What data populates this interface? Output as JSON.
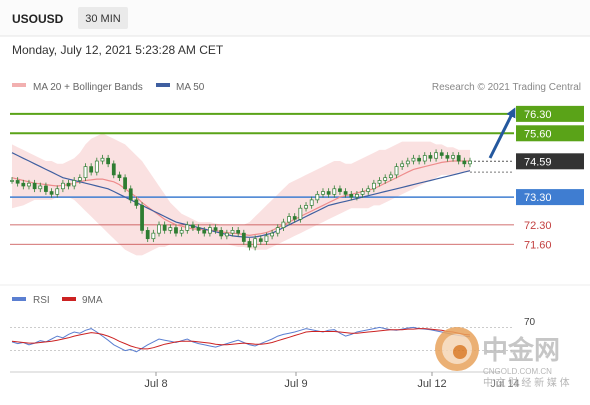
{
  "header": {
    "symbol": "USOUSD",
    "timeframe": "30 MIN",
    "datetime": "Monday, July 12, 2021 5:23:28 AM CET"
  },
  "legend": {
    "ma20": "MA 20 + Bollinger Bands",
    "ma50": "MA 50",
    "credit": "Research © 2021 Trading Central",
    "rsi": "RSI",
    "ma9": "9MA"
  },
  "colors": {
    "candle": "#2e7d32",
    "ma20": "#ee8c8c",
    "band": "#f6c9c9",
    "ma50": "#3f5fa0",
    "resistance": "#5aa318",
    "support": "#3f7dd1",
    "current": "#333333",
    "pivot": "#c34040",
    "rsi": "#5b7fd1",
    "ma9": "#cc2222",
    "arrow": "#24589e"
  },
  "watermark": {
    "logo_text": "中金网",
    "url": "CNGOLD.COM.CN",
    "slogan": "中 文 财 经 新 媒 体"
  },
  "chart_data": {
    "type": "line",
    "title": "USOUSD",
    "timeframe": "30 MIN",
    "y_range": [
      70.6,
      76.8
    ],
    "x_ticks": [
      "Jul 8",
      "Jul 9",
      "Jul 12"
    ],
    "extra_tick": "Jul 14",
    "levels": [
      {
        "value": 76.3,
        "label": "76.30",
        "kind": "resistance"
      },
      {
        "value": 75.6,
        "label": "75.60",
        "kind": "resistance"
      },
      {
        "value": 74.59,
        "label": "74.59",
        "kind": "current"
      },
      {
        "value": 73.3,
        "label": "73.30",
        "kind": "support"
      },
      {
        "value": 72.3,
        "label": "72.30",
        "kind": "pivot"
      },
      {
        "value": 71.6,
        "label": "71.60",
        "kind": "pivot"
      }
    ],
    "price_close": [
      73.9,
      73.8,
      73.7,
      73.8,
      73.6,
      73.7,
      73.5,
      73.4,
      73.6,
      73.8,
      73.7,
      73.9,
      74.0,
      74.4,
      74.2,
      74.6,
      74.7,
      74.5,
      74.1,
      74.0,
      73.6,
      73.2,
      73.0,
      72.1,
      71.8,
      72.0,
      72.3,
      72.1,
      72.2,
      72.0,
      72.1,
      72.3,
      72.2,
      72.1,
      72.0,
      72.2,
      72.1,
      71.9,
      72.0,
      72.1,
      72.0,
      71.7,
      71.5,
      71.8,
      71.7,
      71.9,
      72.0,
      72.2,
      72.4,
      72.6,
      72.5,
      72.9,
      73.0,
      73.2,
      73.4,
      73.5,
      73.4,
      73.6,
      73.5,
      73.4,
      73.3,
      73.4,
      73.5,
      73.6,
      73.8,
      73.9,
      74.0,
      74.1,
      74.4,
      74.5,
      74.6,
      74.7,
      74.6,
      74.8,
      74.7,
      74.9,
      74.8,
      74.7,
      74.8,
      74.6,
      74.5,
      74.6
    ],
    "ma20": [
      74.0,
      73.95,
      73.9,
      73.85,
      73.8,
      73.78,
      73.75,
      73.72,
      73.7,
      73.72,
      73.75,
      73.8,
      73.85,
      73.9,
      73.92,
      73.95,
      73.95,
      73.9,
      73.85,
      73.75,
      73.6,
      73.45,
      73.3,
      73.1,
      72.95,
      72.8,
      72.65,
      72.5,
      72.4,
      72.3,
      72.25,
      72.2,
      72.15,
      72.15,
      72.12,
      72.1,
      72.1,
      72.05,
      72.02,
      72.0,
      71.98,
      71.95,
      71.92,
      71.95,
      71.98,
      72.02,
      72.1,
      72.2,
      72.3,
      72.4,
      72.5,
      72.6,
      72.7,
      72.8,
      72.9,
      73.0,
      73.1,
      73.2,
      73.3,
      73.35,
      73.4,
      73.45,
      73.5,
      73.55,
      73.6,
      73.7,
      73.8,
      73.9,
      74.0,
      74.1,
      74.2,
      74.3,
      74.35,
      74.4,
      74.45,
      74.5,
      74.55,
      74.58,
      74.6,
      74.6,
      74.6,
      74.6
    ],
    "upper_band": [
      75.2,
      75.1,
      75.0,
      74.9,
      74.8,
      74.7,
      74.6,
      74.6,
      74.5,
      74.5,
      74.6,
      74.7,
      74.9,
      75.2,
      75.4,
      75.5,
      75.6,
      75.5,
      75.4,
      75.3,
      75.2,
      75.0,
      74.8,
      74.6,
      74.3,
      74.0,
      73.7,
      73.4,
      73.1,
      72.9,
      72.7,
      72.6,
      72.5,
      72.4,
      72.4,
      72.4,
      72.35,
      72.3,
      72.3,
      72.3,
      72.3,
      72.3,
      72.4,
      72.6,
      72.8,
      73.0,
      73.2,
      73.4,
      73.6,
      73.8,
      73.9,
      74.0,
      74.1,
      74.2,
      74.3,
      74.4,
      74.5,
      74.6,
      74.6,
      74.5,
      74.5,
      74.6,
      74.7,
      74.8,
      74.9,
      75.0,
      75.0,
      75.1,
      75.2,
      75.3,
      75.3,
      75.3,
      75.3,
      75.3,
      75.3,
      75.2,
      75.2,
      75.1,
      75.1,
      75.0,
      75.0,
      75.0
    ],
    "lower_band": [
      72.9,
      72.95,
      73.0,
      73.1,
      73.2,
      73.2,
      73.2,
      73.2,
      73.3,
      73.3,
      73.3,
      73.2,
      73.0,
      72.8,
      72.6,
      72.4,
      72.2,
      72.0,
      71.8,
      71.6,
      71.4,
      71.3,
      71.2,
      71.2,
      71.3,
      71.4,
      71.5,
      71.5,
      71.6,
      71.6,
      71.6,
      71.6,
      71.6,
      71.6,
      71.6,
      71.6,
      71.6,
      71.6,
      71.6,
      71.55,
      71.5,
      71.5,
      71.45,
      71.4,
      71.4,
      71.4,
      71.5,
      71.6,
      71.7,
      71.8,
      71.9,
      72.0,
      72.1,
      72.2,
      72.3,
      72.4,
      72.5,
      72.6,
      72.7,
      72.8,
      72.9,
      72.9,
      72.9,
      72.9,
      73.0,
      73.0,
      73.1,
      73.2,
      73.3,
      73.4,
      73.5,
      73.6,
      73.7,
      73.8,
      73.9,
      74.0,
      74.1,
      74.1,
      74.1,
      74.2,
      74.2,
      74.2
    ],
    "ma50": [
      74.9,
      74.8,
      74.7,
      74.6,
      74.5,
      74.4,
      74.3,
      74.2,
      74.1,
      74.0,
      73.95,
      73.9,
      73.85,
      73.8,
      73.75,
      73.7,
      73.65,
      73.6,
      73.5,
      73.4,
      73.3,
      73.2,
      73.1,
      73.0,
      72.9,
      72.8,
      72.7,
      72.6,
      72.5,
      72.4,
      72.35,
      72.3,
      72.25,
      72.2,
      72.15,
      72.1,
      72.05,
      72.0,
      71.95,
      71.9,
      71.88,
      71.86,
      71.85,
      71.86,
      71.9,
      71.95,
      72.0,
      72.1,
      72.2,
      72.3,
      72.4,
      72.5,
      72.6,
      72.7,
      72.8,
      72.9,
      73.0,
      73.05,
      73.1,
      73.15,
      73.2,
      73.25,
      73.3,
      73.35,
      73.4,
      73.45,
      73.5,
      73.55,
      73.6,
      73.65,
      73.7,
      73.75,
      73.8,
      73.85,
      73.9,
      73.95,
      74.0,
      74.05,
      74.1,
      74.15,
      74.2,
      74.25
    ],
    "rsi_level_label": "70",
    "rsi": [
      45,
      42,
      44,
      40,
      43,
      47,
      45,
      50,
      55,
      52,
      58,
      62,
      60,
      65,
      68,
      62,
      55,
      48,
      40,
      35,
      30,
      32,
      28,
      34,
      40,
      45,
      50,
      48,
      46,
      44,
      47,
      50,
      45,
      42,
      40,
      38,
      36,
      39,
      42,
      45,
      48,
      44,
      40,
      38,
      42,
      46,
      50,
      55,
      58,
      60,
      62,
      65,
      68,
      66,
      64,
      62,
      65,
      66,
      60,
      55,
      58,
      62,
      64,
      66,
      68,
      70,
      68,
      66,
      65,
      67,
      69,
      70,
      68,
      67,
      66,
      64,
      62,
      60,
      58,
      56,
      55,
      54
    ],
    "rsi_ma9": [
      46,
      45,
      44,
      43,
      43,
      44,
      45,
      46,
      48,
      50,
      52,
      55,
      57,
      59,
      61,
      60,
      58,
      55,
      51,
      46,
      42,
      38,
      35,
      33,
      33,
      35,
      38,
      41,
      43,
      45,
      46,
      46,
      46,
      45,
      44,
      43,
      41,
      40,
      40,
      41,
      42,
      43,
      42,
      41,
      41,
      42,
      44,
      47,
      50,
      53,
      56,
      59,
      62,
      63,
      63,
      63,
      63,
      63,
      62,
      61,
      60,
      60,
      61,
      62,
      63,
      64,
      65,
      66,
      66,
      66,
      67,
      67,
      68,
      68,
      67,
      66,
      65,
      63,
      62,
      60,
      58,
      57
    ]
  }
}
